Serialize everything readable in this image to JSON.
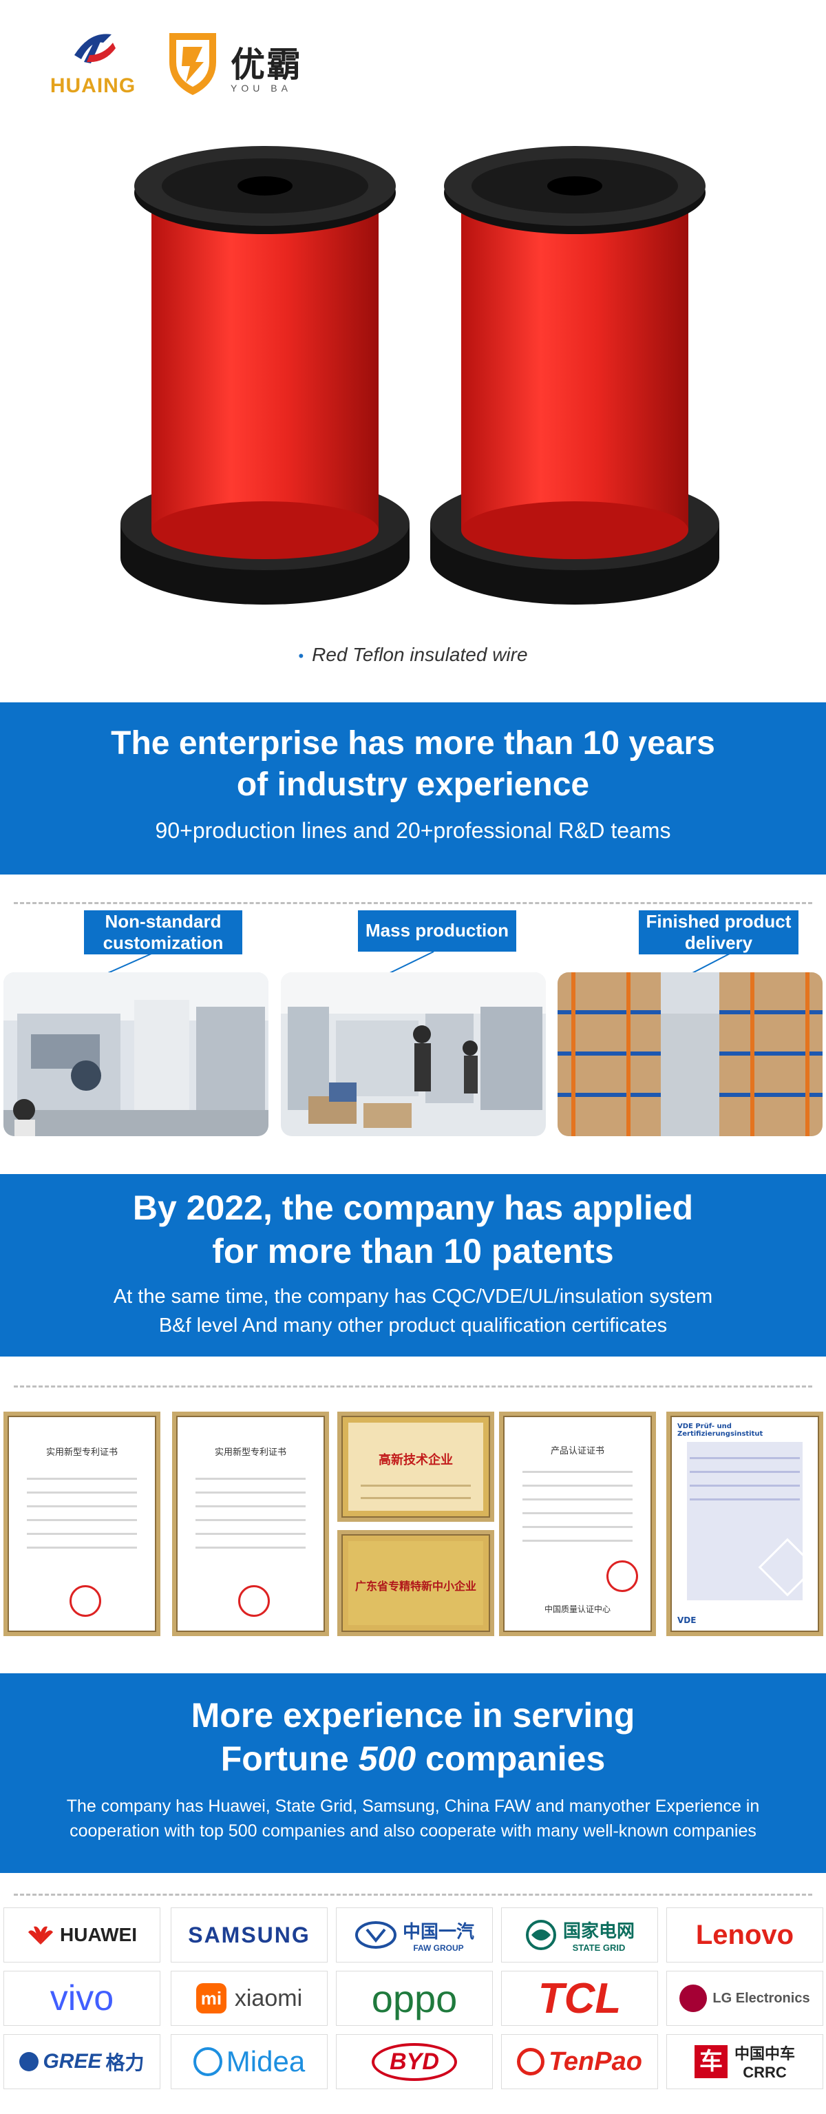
{
  "logos": {
    "huaing": "HUAING",
    "youba_cn": "优霸",
    "youba_en": "YOU BA"
  },
  "caption": "Red Teflon insulated wire",
  "banner1": {
    "title_line1": "The enterprise has more than 10 years",
    "title_line2": "of industry experience",
    "subtitle": "90+production lines and 20+professional R&D teams"
  },
  "production": {
    "labels": [
      "Non-standard customization",
      "Mass production",
      "Finished product delivery"
    ]
  },
  "banner2": {
    "title_line1": "By 2022, the company has applied",
    "title_line2": "for more than 10 patents",
    "body_line1": "At the same time, the company has CQC/VDE/UL/insulation system",
    "body_line2": "B&f level And many other product qualification certificates"
  },
  "certificates": {
    "patent1": "实用新型专利证书",
    "patent2": "实用新型专利证书",
    "hightech": "高新技术企业",
    "sme": "广东省专精特新中小企业",
    "cqc": "产品认证证书",
    "cqc_footer": "中国质量认证中心",
    "vde_header": "VDE Prüf- und Zertifizierungsinstitut",
    "vde_footer": "VDE"
  },
  "banner3": {
    "title_line1": "More experience in serving",
    "title_line2_pre": "Fortune ",
    "title_line2_num": "500",
    "title_line2_post": " companies",
    "body_line1": "The company has Huawei, State Grid, Samsung, China FAW and manyother Experience in",
    "body_line2": "cooperation with top 500 companies and also cooperate with many well-known companies"
  },
  "brands": [
    {
      "name": "HUAWEI",
      "color": "#222222"
    },
    {
      "name": "SAMSUNG",
      "color": "#1c3f94"
    },
    {
      "name": "中国一汽",
      "sub": "FAW GROUP",
      "color": "#1d4fa0"
    },
    {
      "name": "国家电网",
      "sub": "STATE GRID",
      "color": "#0c6e5e"
    },
    {
      "name": "Lenovo",
      "color": "#e2231a"
    },
    {
      "name": "vivo",
      "color": "#415fff"
    },
    {
      "name": "xiaomi",
      "color": "#444444"
    },
    {
      "name": "oppo",
      "color": "#1f7a3d"
    },
    {
      "name": "TCL",
      "color": "#e2231a"
    },
    {
      "name": "LG Electronics",
      "color": "#555555"
    },
    {
      "name": "GREE",
      "sub": "格力",
      "color": "#1d4fa0"
    },
    {
      "name": "Midea",
      "color": "#1d8fe0"
    },
    {
      "name": "BYD",
      "color": "#d0021b"
    },
    {
      "name": "TenPao",
      "color": "#e2231a"
    },
    {
      "name": "中国中车",
      "sub": "CRRC",
      "color": "#d0021b"
    }
  ],
  "colors": {
    "accent": "#0c71c9",
    "wire_red": "#e8261f"
  }
}
